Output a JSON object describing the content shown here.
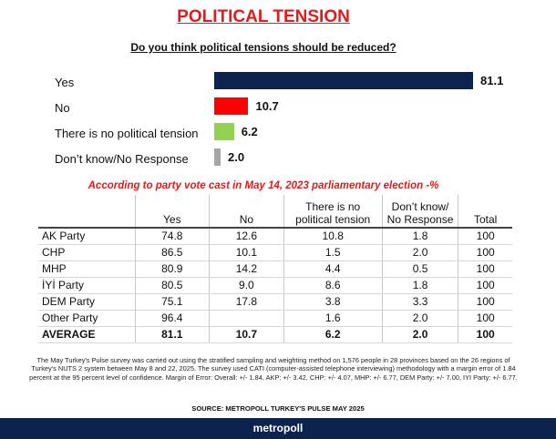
{
  "title": "POLITICAL TENSION",
  "question": "Do you think political tensions should be reduced?",
  "chart_data": [
    {
      "type": "bar",
      "orientation": "horizontal",
      "categories": [
        "Yes",
        "No",
        "There is no political tension",
        "Don’t know/No Response"
      ],
      "values": [
        81.1,
        10.7,
        6.2,
        2.0
      ],
      "value_labels": [
        "81.1",
        "10.7",
        "6.2",
        "2.0"
      ],
      "colors": [
        "#0c2350",
        "#ff0000",
        "#92d050",
        "#a6a6a6"
      ],
      "title": "",
      "xlabel": "",
      "ylabel": "",
      "xlim": [
        0,
        81.1
      ],
      "grid": false
    },
    {
      "type": "table",
      "title": "According to party vote cast in May 14, 2023 parliamentary election -%",
      "columns": [
        "",
        "Yes",
        "No",
        "There is no political tension",
        "Don’t know/ No Response",
        "Total"
      ],
      "rows": [
        [
          "AK Party",
          "74.8",
          "12.6",
          "10.8",
          "1.8",
          "100"
        ],
        [
          "CHP",
          "86.5",
          "10.1",
          "1.5",
          "2.0",
          "100"
        ],
        [
          "MHP",
          "80.9",
          "14.2",
          "4.4",
          "0.5",
          "100"
        ],
        [
          "İYİ Party",
          "80.5",
          "9.0",
          "8.6",
          "1.8",
          "100"
        ],
        [
          "DEM Party",
          "75.1",
          "17.8",
          "3.8",
          "3.3",
          "100"
        ],
        [
          "Other Party",
          "96.4",
          "",
          "1.6",
          "2.0",
          "100"
        ],
        [
          "AVERAGE",
          "81.1",
          "10.7",
          "6.2",
          "2.0",
          "100"
        ]
      ]
    }
  ],
  "table_header": {
    "yes": "Yes",
    "no": "No",
    "no_tension_line1": "There is no",
    "no_tension_line2": "political tension",
    "dk_line1": "Don’t know/",
    "dk_line2": "No Response",
    "total": "Total"
  },
  "footnote": "The May Turkey's Pulse survey was carried out using the stratified sampling and weighting method on 1,576 people in 28 provinces based on the 26 regions of Turkey's NUTS 2 system between May 8 and 22, 2025. The survey used CATI (computer-assisted telephone interviewing) methodology with a margin error of 1.84 percent at the 95 percent level of confidence. Margin of Error: Overall: +/- 1.84, AKP: +/- 3.42, CHP: +/- 4.07, MHP: +/- 6.77, DEM Party: +/- 7.00, IYI Party: +/- 6.77.",
  "source": "SOURCE: METROPOLL TURKEY'S PULSE MAY 2025",
  "brand": "metropoll"
}
